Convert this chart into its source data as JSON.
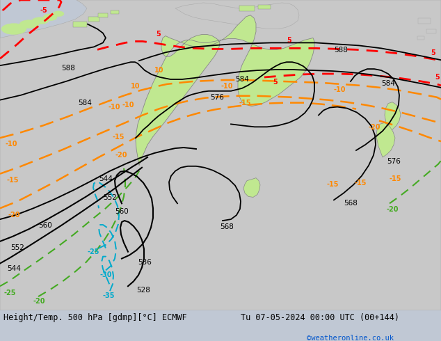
{
  "title_left": "Height/Temp. 500 hPa [gdmp][°C] ECMWF",
  "title_right": "Tu 07-05-2024 00:00 UTC (00+144)",
  "credit": "©weatheronline.co.uk",
  "ocean_color": "#c8d0d8",
  "gray_land_color": "#c8c8c8",
  "green_land_color": "#c0e890",
  "fig_width": 6.34,
  "fig_height": 4.9,
  "dpi": 100
}
